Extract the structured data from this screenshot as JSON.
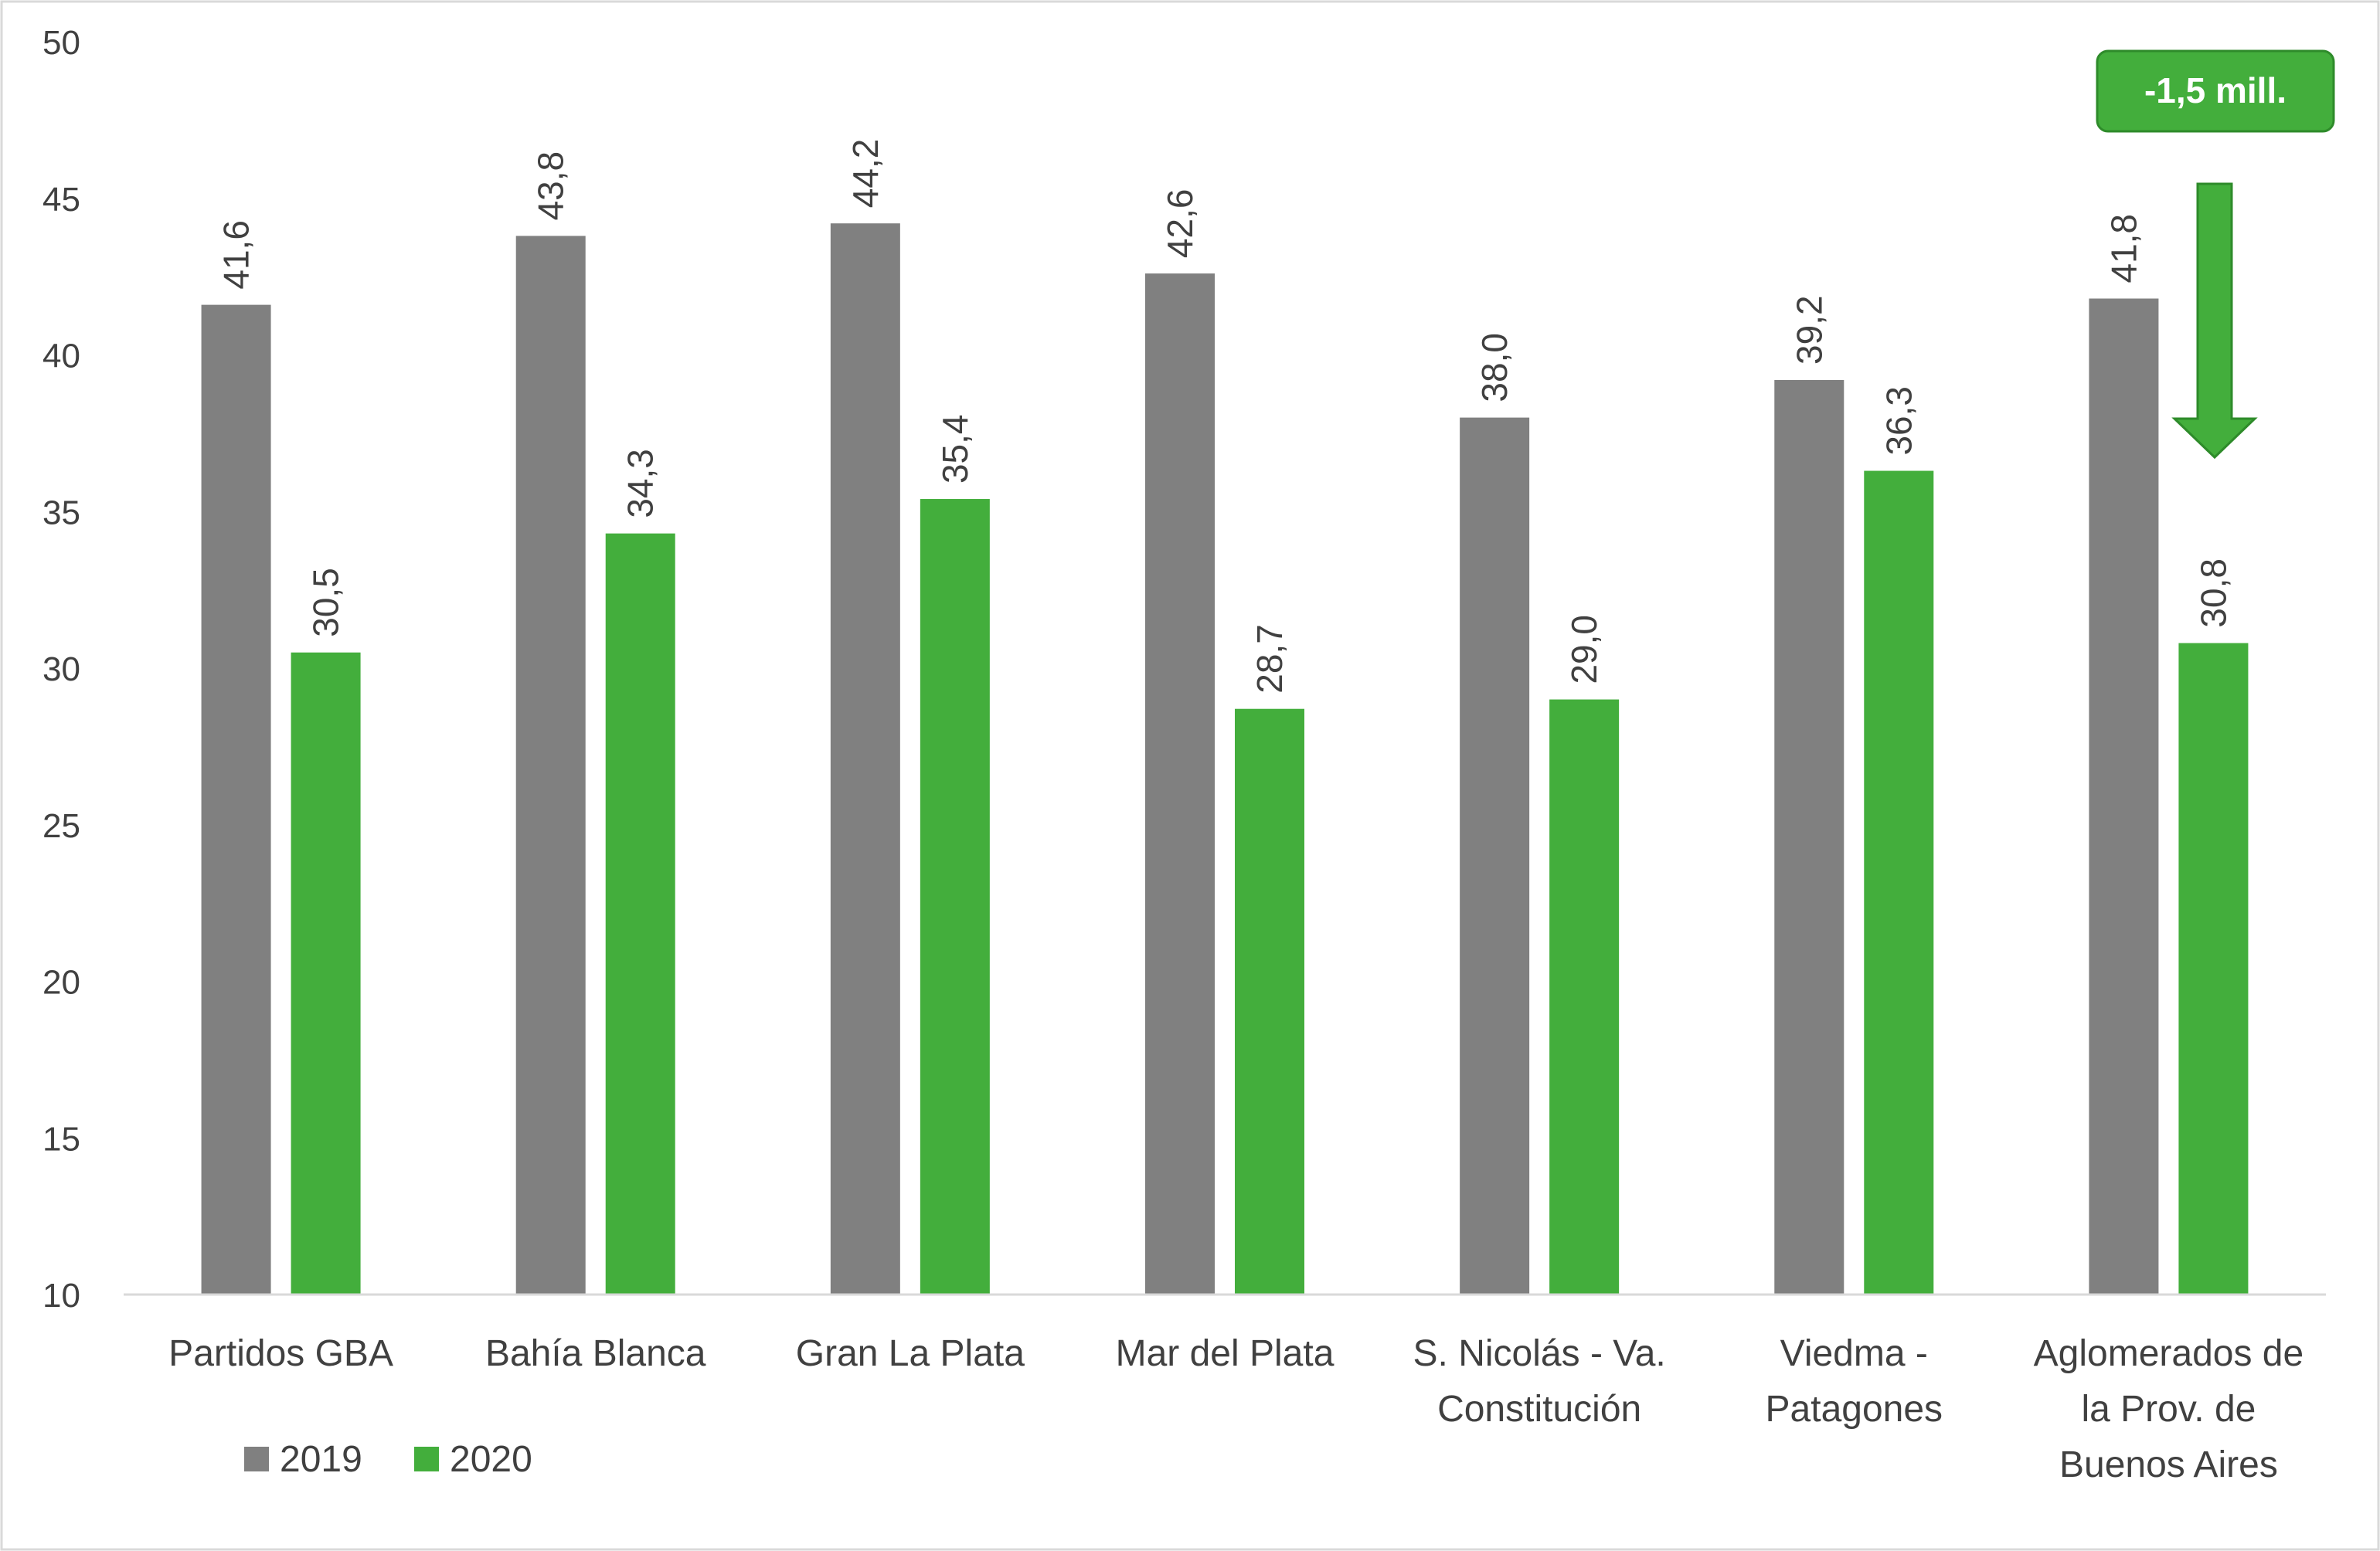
{
  "chart_data": {
    "type": "bar",
    "categories": [
      [
        "Partidos GBA"
      ],
      [
        "Bahía Blanca"
      ],
      [
        "Gran La Plata"
      ],
      [
        "Mar del Plata"
      ],
      [
        "S. Nicolás - Va.",
        "Constitución"
      ],
      [
        "Viedma -",
        "Patagones"
      ],
      [
        "Aglomerados de",
        "la Prov. de",
        "Buenos Aires"
      ]
    ],
    "series": [
      {
        "name": "2019",
        "color": "#808080",
        "values": [
          41.6,
          43.8,
          44.2,
          42.6,
          38.0,
          39.2,
          41.8
        ],
        "labels": [
          "41,6",
          "43,8",
          "44,2",
          "42,6",
          "38,0",
          "39,2",
          "41,8"
        ]
      },
      {
        "name": "2020",
        "color": "#43ae3c",
        "values": [
          30.5,
          34.3,
          35.4,
          28.7,
          29.0,
          36.3,
          30.8
        ],
        "labels": [
          "30,5",
          "34,3",
          "35,4",
          "28,7",
          "29,0",
          "36,3",
          "30,8"
        ]
      }
    ],
    "ylim": [
      10,
      50
    ],
    "yticks": [
      10,
      15,
      20,
      25,
      30,
      35,
      40,
      45,
      50
    ],
    "grid": false,
    "legend_position": "bottom-left",
    "annotation": {
      "text": "-1,5 mill.",
      "category_index": 6,
      "arrow": "down",
      "color": "#43ae3c"
    }
  }
}
